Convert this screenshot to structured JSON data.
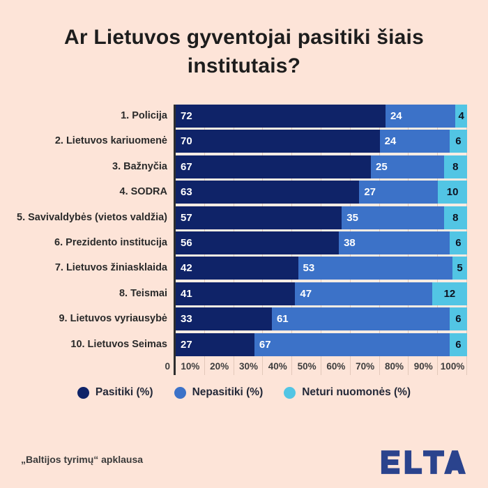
{
  "title": "Ar Lietuvos gyventojai pasitiki šiais institutais?",
  "chart_data": {
    "type": "bar",
    "orientation": "horizontal-stacked",
    "title": "Ar Lietuvos gyventojai pasitiki šiais institutais?",
    "categories": [
      "1. Policija",
      "2. Lietuvos kariuomenė",
      "3. Bažnyčia",
      "4. SODRA",
      "5. Savivaldybės (vietos valdžia)",
      "6. Prezidento institucija",
      "7. Lietuvos žiniasklaida",
      "8. Teismai",
      "9. Lietuvos vyriausybė",
      "10. Lietuvos Seimas"
    ],
    "series": [
      {
        "name": "Pasitiki (%)",
        "color": "#0f2368",
        "values": [
          72,
          70,
          67,
          63,
          57,
          56,
          42,
          41,
          33,
          27
        ]
      },
      {
        "name": "Nepasitiki (%)",
        "color": "#3c72c8",
        "values": [
          24,
          24,
          25,
          27,
          35,
          38,
          53,
          47,
          61,
          67
        ]
      },
      {
        "name": "Neturi nuomonės (%)",
        "color": "#52c5e4",
        "values": [
          4,
          6,
          8,
          10,
          8,
          6,
          5,
          12,
          6,
          6
        ]
      }
    ],
    "x_ticks": [
      "0",
      "10%",
      "20%",
      "30%",
      "40%",
      "50%",
      "60%",
      "70%",
      "80%",
      "90%",
      "100%"
    ],
    "xlim": [
      0,
      100
    ],
    "grid": true,
    "legend_position": "bottom"
  },
  "footer": {
    "source": "„Baltijos tyrimų“ apklausa",
    "logo_text": "ELTA"
  },
  "colors": {
    "background": "#fde4d8",
    "plot_gap": "#f8ece3",
    "gridline": "#e2c8ba",
    "axis": "#2e2e2e",
    "title_text": "#1d1d1d",
    "value_label_light": "#ffffff",
    "value_label_dark": "#0d1220",
    "logo": "#2a438d"
  }
}
